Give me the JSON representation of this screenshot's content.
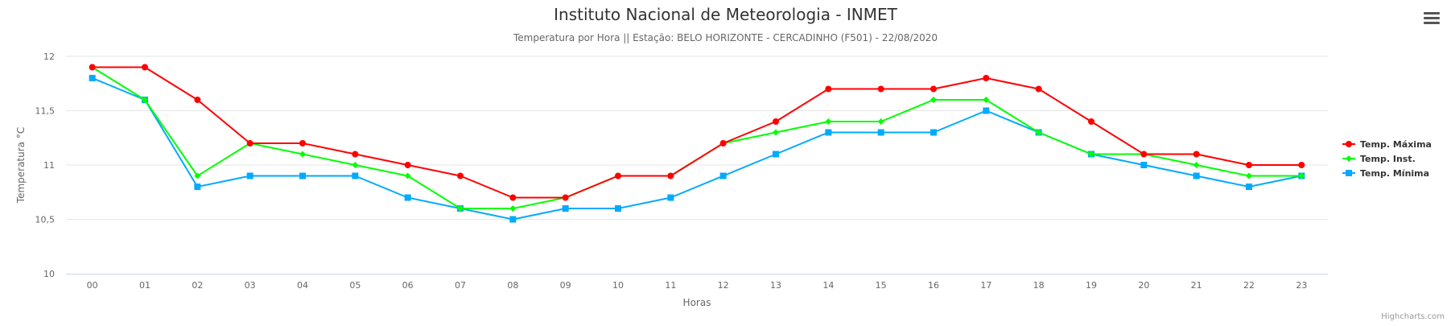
{
  "title": "Instituto Nacional de Meteorologia - INMET",
  "subtitle": "Temperatura por Hora || Estação: BELO HORIZONTE - CERCADINHO (F501) - 22/08/2020",
  "credits": "Highcharts.com",
  "menu_icon": "hamburger-menu-icon",
  "chart_data": {
    "type": "line",
    "title": "Instituto Nacional de Meteorologia - INMET",
    "subtitle": "Temperatura por Hora || Estação: BELO HORIZONTE - CERCADINHO (F501) - 22/08/2020",
    "xlabel": "Horas",
    "ylabel": "Temperatura °C",
    "categories": [
      "00",
      "01",
      "02",
      "03",
      "04",
      "05",
      "06",
      "07",
      "08",
      "09",
      "10",
      "11",
      "12",
      "13",
      "14",
      "15",
      "16",
      "17",
      "18",
      "19",
      "20",
      "21",
      "22",
      "23"
    ],
    "ylim": [
      10,
      12
    ],
    "yticks": [
      "10",
      "10,5",
      "11",
      "11,5",
      "12"
    ],
    "grid": true,
    "legend_position": "right",
    "series": [
      {
        "name": "Temp. Máxima",
        "color": "#ff0000",
        "marker": "circle",
        "values": [
          11.9,
          11.9,
          11.6,
          11.2,
          11.2,
          11.1,
          11.0,
          10.9,
          10.7,
          10.7,
          10.9,
          10.9,
          11.2,
          11.4,
          11.7,
          11.7,
          11.7,
          11.8,
          11.7,
          11.4,
          11.1,
          11.1,
          11.0,
          11.0
        ]
      },
      {
        "name": "Temp. Inst.",
        "color": "#00ff00",
        "marker": "diamond",
        "values": [
          11.9,
          11.6,
          10.9,
          11.2,
          11.1,
          11.0,
          10.9,
          10.6,
          10.6,
          10.7,
          10.9,
          10.9,
          11.2,
          11.3,
          11.4,
          11.4,
          11.6,
          11.6,
          11.3,
          11.1,
          11.1,
          11.0,
          10.9,
          10.9
        ]
      },
      {
        "name": "Temp. Mínima",
        "color": "#00aaff",
        "marker": "square",
        "values": [
          11.8,
          11.6,
          10.8,
          10.9,
          10.9,
          10.9,
          10.7,
          10.6,
          10.5,
          10.6,
          10.6,
          10.7,
          10.9,
          11.1,
          11.3,
          11.3,
          11.3,
          11.5,
          11.3,
          11.1,
          11.0,
          10.9,
          10.8,
          10.9
        ]
      }
    ]
  }
}
